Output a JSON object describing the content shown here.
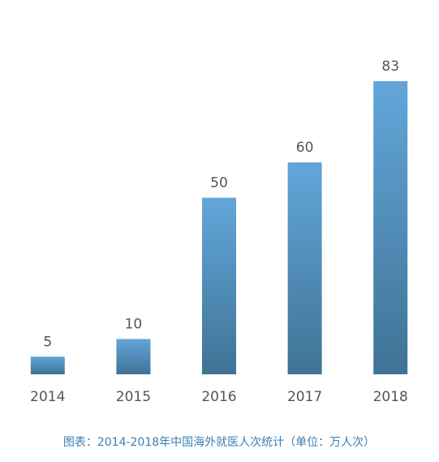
{
  "chart_data": {
    "type": "bar",
    "categories": [
      "2014",
      "2015",
      "2016",
      "2017",
      "2018"
    ],
    "values": [
      5,
      10,
      50,
      60,
      83
    ],
    "color_top": "#62a6da",
    "color_bottom": "#3f7395",
    "caption": "图表：2014-2018年中国海外就医人次统计（单位：万人次）"
  }
}
